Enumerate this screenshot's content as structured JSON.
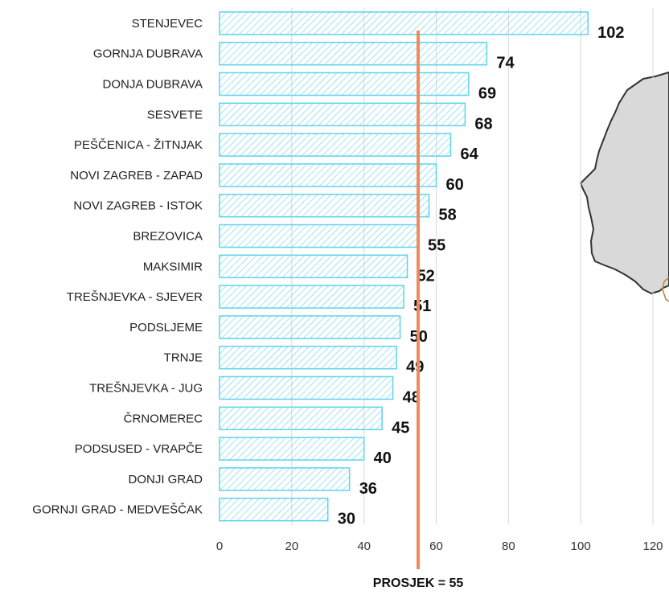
{
  "chart_data": {
    "type": "bar",
    "orientation": "horizontal",
    "categories": [
      "STENJEVEC",
      "GORNJA DUBRAVA",
      "DONJA DUBRAVA",
      "SESVETE",
      "PEŠČENICA - ŽITNJAK",
      "NOVI ZAGREB - ZAPAD",
      "NOVI ZAGREB - ISTOK",
      "BREZOVICA",
      "MAKSIMIR",
      "TREŠNJEVKA - SJEVER",
      "PODSLJEME",
      "TRNJE",
      "TREŠNJEVKA - JUG",
      "ČRNOMEREC",
      "PODSUSED - VRAPČE",
      "DONJI GRAD",
      "GORNJI GRAD - MEDVEŠČAK"
    ],
    "values": [
      102,
      74,
      69,
      68,
      64,
      60,
      58,
      55,
      52,
      51,
      50,
      49,
      48,
      45,
      40,
      36,
      30
    ],
    "xlim": [
      0,
      120
    ],
    "xticks": [
      0,
      20,
      40,
      60,
      80,
      100,
      120
    ],
    "grid": true,
    "reference_line": {
      "value": 55,
      "label": "PROSJEK = 55",
      "color": "#f08a5d"
    },
    "bar_fill": "hatched",
    "bar_color": "#5fd3ec"
  },
  "map": {
    "region_fill": "#d9d9d9",
    "outline_color": "#333333"
  }
}
